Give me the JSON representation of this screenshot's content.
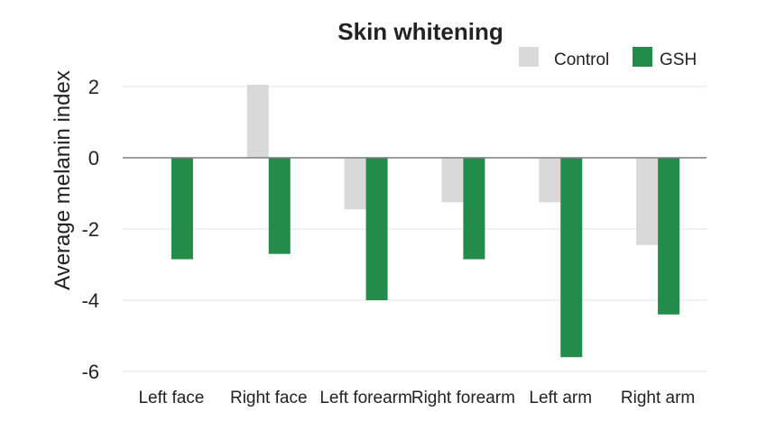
{
  "chart_data": {
    "type": "bar",
    "title": "Skin whitening",
    "xlabel": "",
    "ylabel": "Average melanin index",
    "categories": [
      "Left face",
      "Right face",
      "Left forearm",
      "Right forearm",
      "Left arm",
      "Right arm"
    ],
    "series": [
      {
        "name": "Control",
        "color": "#d9d9d9",
        "values": [
          0,
          2.05,
          -1.45,
          -1.25,
          -1.25,
          -2.45
        ]
      },
      {
        "name": "GSH",
        "color": "#238c4a",
        "values": [
          -2.85,
          -2.7,
          -4.0,
          -2.85,
          -5.6,
          -4.4
        ]
      }
    ],
    "yticks": [
      2,
      0,
      -2,
      -4,
      -6
    ],
    "ytick_labels": [
      "2",
      "0",
      "-2",
      "-4",
      "-6"
    ],
    "ylim": [
      -6,
      2
    ],
    "grid": true,
    "legend_position": "top-right"
  }
}
